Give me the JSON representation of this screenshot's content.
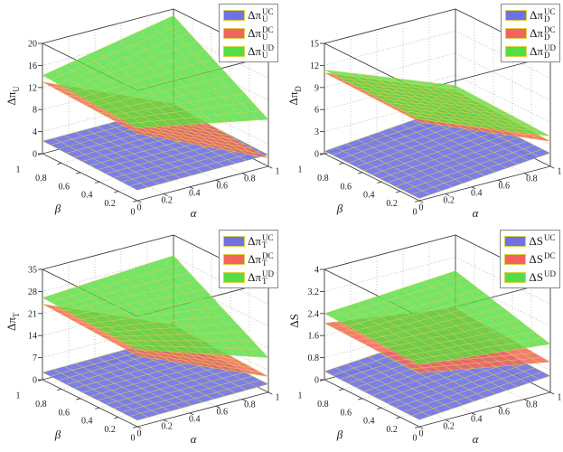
{
  "figure_name": "2x2-3d-surface-comparison",
  "colors": {
    "blue": "#6f71e6",
    "red": "#f4635f",
    "green": "#52df45",
    "edge": "#d9d24a",
    "box": "#3c3c3c",
    "grid": "#a8a8a8",
    "text": "#1a1a1a",
    "legend_border": "#8a8a8a",
    "background": "#ffffff"
  },
  "chart_data": [
    {
      "id": "delta-pi-U",
      "type": "surface3d",
      "xlabel": "α",
      "ylabel": "β",
      "zlabel": {
        "base": "Δπ",
        "sub": "U"
      },
      "xticks": [
        0,
        0.2,
        0.4,
        0.6,
        0.8,
        1
      ],
      "yticks": [
        0,
        0.2,
        0.4,
        0.6,
        0.8,
        1
      ],
      "zticks": [
        0,
        4,
        8,
        12,
        16,
        20
      ],
      "zlim": [
        0,
        20
      ],
      "xlim": [
        0,
        1
      ],
      "ylim": [
        0,
        1
      ],
      "grid": true,
      "legend_position": "top-right",
      "legend": [
        {
          "base": "Δπ",
          "sub": "U",
          "sup": "UC",
          "color_key": "blue"
        },
        {
          "base": "Δπ",
          "sub": "U",
          "sup": "DC",
          "color_key": "red"
        },
        {
          "base": "Δπ",
          "sub": "U",
          "sup": "UD",
          "color_key": "green"
        }
      ],
      "surfaces": [
        {
          "name": "UC",
          "color_key": "blue",
          "opacity": 0.9,
          "corner_values": {
            "a0b0": 1.9,
            "a1b0": 2.1,
            "a0b1": 2.3,
            "a1b1": 2.4
          }
        },
        {
          "name": "DC",
          "color_key": "red",
          "opacity": 0.85,
          "corner_values": {
            "a0b0": 12.2,
            "a1b0": 1.5,
            "a0b1": 13.0,
            "a1b1": 2.8
          }
        },
        {
          "name": "UD",
          "color_key": "green",
          "opacity": 0.8,
          "corner_values": {
            "a0b0": 13.2,
            "a1b0": 8.5,
            "a0b1": 14.2,
            "a1b1": 18.8
          }
        }
      ]
    },
    {
      "id": "delta-pi-D",
      "type": "surface3d",
      "xlabel": "α",
      "ylabel": "β",
      "zlabel": {
        "base": "Δπ",
        "sub": "D"
      },
      "xticks": [
        0,
        0.2,
        0.4,
        0.6,
        0.8,
        1
      ],
      "yticks": [
        0,
        0.2,
        0.4,
        0.6,
        0.8,
        1
      ],
      "zticks": [
        0,
        3,
        6,
        9,
        12,
        15
      ],
      "zlim": [
        0,
        15
      ],
      "xlim": [
        0,
        1
      ],
      "ylim": [
        0,
        1
      ],
      "grid": true,
      "legend_position": "top-right",
      "legend": [
        {
          "base": "Δπ",
          "sub": "D",
          "sup": "UC",
          "color_key": "blue"
        },
        {
          "base": "Δπ",
          "sub": "D",
          "sup": "DC",
          "color_key": "red"
        },
        {
          "base": "Δπ",
          "sub": "D",
          "sup": "UD",
          "color_key": "green"
        }
      ],
      "surfaces": [
        {
          "name": "UC",
          "color_key": "blue",
          "opacity": 0.9,
          "corner_values": {
            "a0b0": 0.3,
            "a1b0": 1.8,
            "a0b1": 0.35,
            "a1b1": 1.9
          }
        },
        {
          "name": "DC",
          "color_key": "red",
          "opacity": 0.85,
          "corner_values": {
            "a0b0": 10.7,
            "a1b0": 3.4,
            "a0b1": 11.0,
            "a1b1": 3.9
          }
        },
        {
          "name": "UD",
          "color_key": "green",
          "opacity": 0.8,
          "corner_values": {
            "a0b0": 11.1,
            "a1b0": 4.1,
            "a0b1": 11.4,
            "a1b1": 4.6
          }
        }
      ]
    },
    {
      "id": "delta-pi-T",
      "type": "surface3d",
      "xlabel": "α",
      "ylabel": "β",
      "zlabel": {
        "base": "Δπ",
        "sub": "T"
      },
      "xticks": [
        0,
        0.2,
        0.4,
        0.6,
        0.8,
        1
      ],
      "yticks": [
        0,
        0.2,
        0.4,
        0.6,
        0.8,
        1
      ],
      "zticks": [
        0,
        7,
        14,
        21,
        28,
        35
      ],
      "zlim": [
        0,
        35
      ],
      "xlim": [
        0,
        1
      ],
      "ylim": [
        0,
        1
      ],
      "grid": true,
      "legend_position": "top-right",
      "legend": [
        {
          "base": "Δπ",
          "sub": "T",
          "sup": "UC",
          "color_key": "blue"
        },
        {
          "base": "Δπ",
          "sub": "T",
          "sup": "DC",
          "color_key": "red"
        },
        {
          "base": "Δπ",
          "sub": "T",
          "sup": "UD",
          "color_key": "green"
        }
      ],
      "surfaces": [
        {
          "name": "UC",
          "color_key": "blue",
          "opacity": 0.9,
          "corner_values": {
            "a0b0": 2.0,
            "a1b0": 2.6,
            "a0b1": 2.3,
            "a1b1": 2.9
          }
        },
        {
          "name": "DC",
          "color_key": "red",
          "opacity": 0.85,
          "corner_values": {
            "a0b0": 22.5,
            "a1b0": 5.0,
            "a0b1": 24.0,
            "a1b1": 6.5
          }
        },
        {
          "name": "UD",
          "color_key": "green",
          "opacity": 0.8,
          "corner_values": {
            "a0b0": 24.5,
            "a1b0": 11.0,
            "a0b1": 26.0,
            "a1b1": 28.5
          }
        }
      ]
    },
    {
      "id": "delta-S",
      "type": "surface3d",
      "xlabel": "α",
      "ylabel": "β",
      "zlabel": {
        "base": "ΔS",
        "sub": ""
      },
      "xticks": [
        0,
        0.2,
        0.4,
        0.6,
        0.8,
        1
      ],
      "yticks": [
        0,
        0.2,
        0.4,
        0.6,
        0.8,
        1
      ],
      "zticks": [
        0,
        0.8,
        1.6,
        2.4,
        3.2,
        4
      ],
      "zlim": [
        0,
        4
      ],
      "xlim": [
        0,
        1
      ],
      "ylim": [
        0,
        1
      ],
      "grid": true,
      "legend_position": "top-right",
      "legend": [
        {
          "base": "ΔS",
          "sub": "",
          "sup": "UC",
          "color_key": "blue"
        },
        {
          "base": "ΔS",
          "sub": "",
          "sup": "DC",
          "color_key": "red"
        },
        {
          "base": "ΔS",
          "sub": "",
          "sup": "UD",
          "color_key": "green"
        }
      ],
      "surfaces": [
        {
          "name": "UC",
          "color_key": "blue",
          "opacity": 0.9,
          "corner_values": {
            "a0b0": 0.25,
            "a1b0": 0.6,
            "a0b1": 0.3,
            "a1b1": 0.65
          }
        },
        {
          "name": "DC",
          "color_key": "red",
          "opacity": 0.85,
          "corner_values": {
            "a0b0": 1.95,
            "a1b0": 1.1,
            "a0b1": 2.05,
            "a1b1": 1.35
          }
        },
        {
          "name": "UD",
          "color_key": "green",
          "opacity": 0.8,
          "corner_values": {
            "a0b0": 2.25,
            "a1b0": 1.75,
            "a0b1": 2.4,
            "a1b1": 2.7
          }
        }
      ]
    }
  ]
}
